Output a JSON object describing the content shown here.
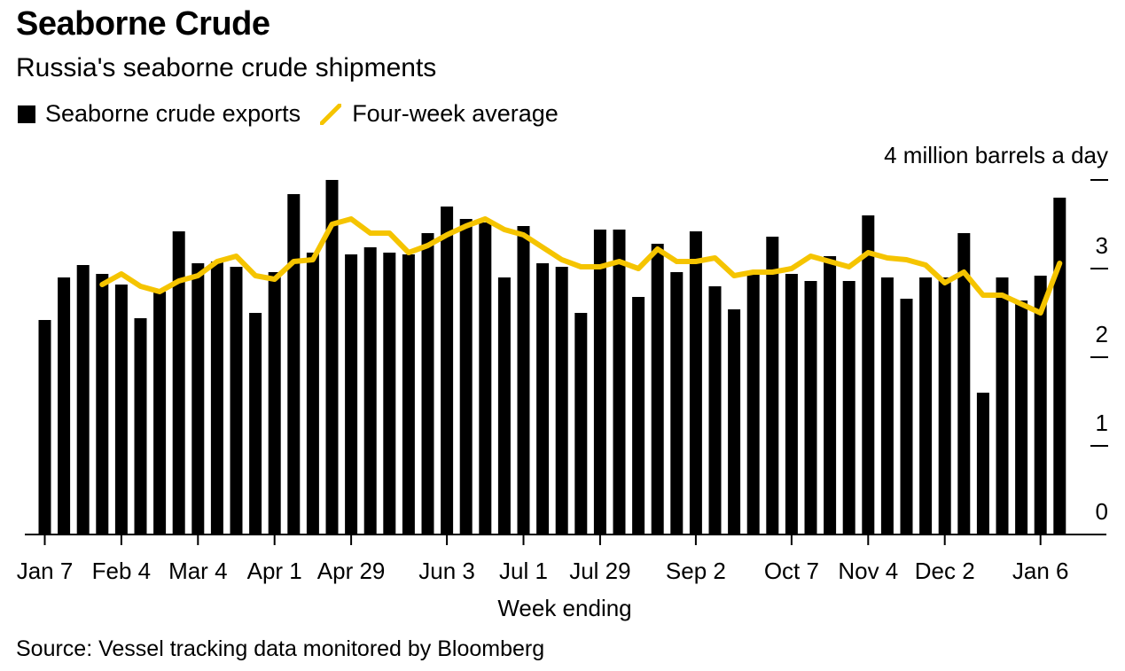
{
  "header": {
    "title": "Seaborne Crude",
    "subtitle": "Russia's seaborne crude shipments"
  },
  "legend": {
    "bar_label": "Seaborne crude exports",
    "line_label": "Four-week average"
  },
  "footer": {
    "source": "Source: Vessel tracking data monitored by Bloomberg"
  },
  "colors": {
    "bar": "#000000",
    "line": "#f5c400"
  },
  "chart_data": {
    "type": "bar",
    "title": "Seaborne Crude",
    "subtitle": "Russia's seaborne crude shipments",
    "xlabel": "Week ending",
    "ylabel": "4 million barrels a day",
    "unit_label": "4 million barrels a day",
    "ylim": [
      0,
      4
    ],
    "yticks": [
      0,
      1,
      2,
      3,
      4
    ],
    "ytick_labels": [
      "0",
      "1",
      "2",
      "3",
      ""
    ],
    "x_tick_labels": [
      {
        "index": 0,
        "label": "Jan 7"
      },
      {
        "index": 4,
        "label": "Feb 4"
      },
      {
        "index": 8,
        "label": "Mar 4"
      },
      {
        "index": 12,
        "label": "Apr 1"
      },
      {
        "index": 16,
        "label": "Apr 29"
      },
      {
        "index": 21,
        "label": "Jun 3"
      },
      {
        "index": 25,
        "label": "Jul 1"
      },
      {
        "index": 29,
        "label": "Jul 29"
      },
      {
        "index": 34,
        "label": "Sep 2"
      },
      {
        "index": 39,
        "label": "Oct 7"
      },
      {
        "index": 43,
        "label": "Nov 4"
      },
      {
        "index": 47,
        "label": "Dec 2"
      },
      {
        "index": 52,
        "label": "Jan 6"
      }
    ],
    "series": [
      {
        "name": "Seaborne crude exports",
        "type": "bar",
        "values": [
          2.42,
          2.9,
          3.04,
          2.94,
          2.82,
          2.44,
          2.74,
          3.42,
          3.06,
          3.08,
          3.02,
          2.5,
          2.96,
          3.84,
          3.18,
          4.0,
          3.16,
          3.24,
          3.18,
          3.16,
          3.4,
          3.7,
          3.56,
          3.52,
          2.9,
          3.48,
          3.06,
          3.02,
          2.5,
          3.44,
          3.44,
          2.68,
          3.28,
          2.96,
          3.42,
          2.8,
          2.54,
          2.96,
          3.36,
          2.94,
          2.86,
          3.14,
          2.86,
          3.6,
          2.9,
          2.66,
          2.9,
          2.9,
          3.4,
          1.6,
          2.9,
          2.64,
          2.92,
          3.8
        ]
      },
      {
        "name": "Four-week average",
        "type": "line",
        "values": [
          null,
          null,
          null,
          2.82,
          2.94,
          2.8,
          2.74,
          2.86,
          2.92,
          3.08,
          3.14,
          2.92,
          2.88,
          3.08,
          3.1,
          3.5,
          3.56,
          3.4,
          3.4,
          3.18,
          3.26,
          3.38,
          3.48,
          3.56,
          3.44,
          3.38,
          3.24,
          3.1,
          3.02,
          3.02,
          3.08,
          3.0,
          3.22,
          3.08,
          3.08,
          3.12,
          2.92,
          2.96,
          2.96,
          3.0,
          3.14,
          3.08,
          3.02,
          3.18,
          3.12,
          3.1,
          3.04,
          2.84,
          2.96,
          2.7,
          2.7,
          2.6,
          2.5,
          3.06
        ]
      }
    ]
  }
}
